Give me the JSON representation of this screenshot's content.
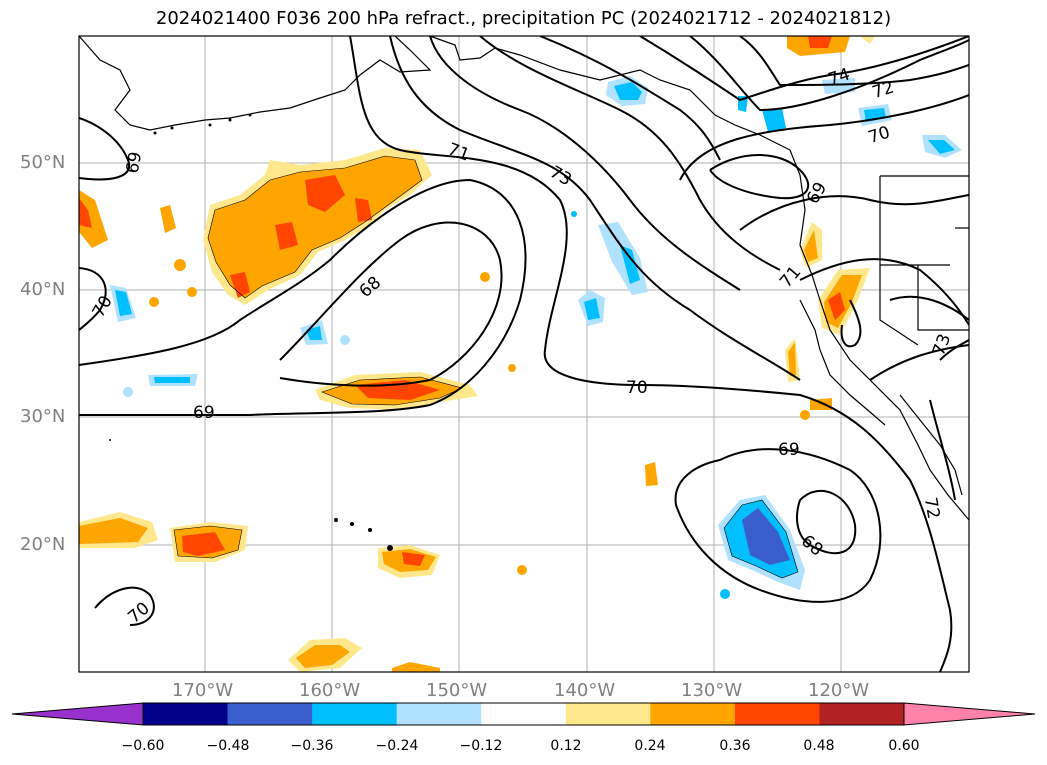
{
  "title": "2024021400 F036 200 hPa refract., precipitation PC (2024021712 - 2024021812)",
  "lat_labels": [
    "50°N",
    "40°N",
    "30°N",
    "20°N"
  ],
  "lon_labels": [
    "170°W",
    "160°W",
    "150°W",
    "140°W",
    "130°W",
    "120°W"
  ],
  "contour_labels": [
    "69",
    "70",
    "71",
    "73",
    "74",
    "72",
    "70",
    "68",
    "69",
    "70",
    "71",
    "73",
    "69",
    "68",
    "72",
    "70",
    "69"
  ],
  "colorbar": {
    "ticks": [
      "−0.60",
      "−0.48",
      "−0.36",
      "−0.24",
      "−0.12",
      "0.12",
      "0.24",
      "0.36",
      "0.48",
      "0.60"
    ],
    "colors": [
      "#9932cc",
      "#00008b",
      "#3a5fcd",
      "#00bfff",
      "#b0e2ff",
      "#ffffff",
      "#ffe88c",
      "#ffa500",
      "#ff4500",
      "#b22222",
      "#ff82ab"
    ]
  },
  "shading_colors": {
    "light_yellow": "#ffe88c",
    "orange": "#ffa500",
    "red_orange": "#ff4500",
    "light_blue": "#b0e2ff",
    "blue": "#00bfff",
    "royal_blue": "#3a5fcd"
  }
}
